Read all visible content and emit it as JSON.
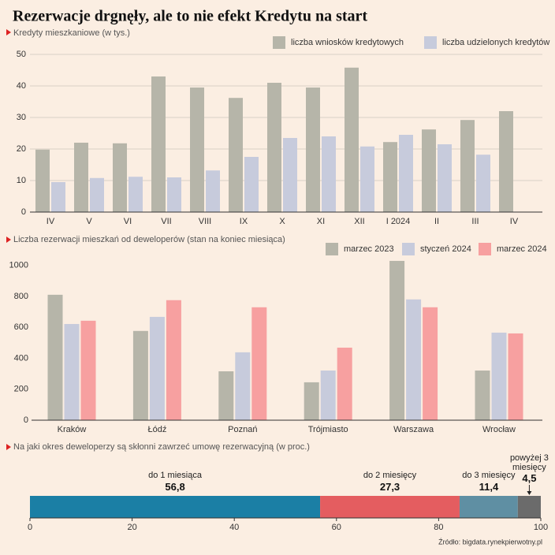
{
  "title": "Rezerwacje drgnęły, ale to nie efekt Kredytu na start",
  "source": "Źródło: bigdata.rynekpierwotny.pl",
  "chart_data": [
    {
      "type": "bar",
      "subtitle": "Kredyty mieszkaniowe (w tys.)",
      "categories": [
        "IV",
        "V",
        "VI",
        "VII",
        "VIII",
        "IX",
        "X",
        "XI",
        "XII",
        "I 2024",
        "II",
        "III",
        "IV"
      ],
      "series": [
        {
          "name": "liczba wniosków kredytowych",
          "color": "#b6b5a9",
          "values": [
            19.8,
            22,
            21.8,
            43,
            39.5,
            36.2,
            41,
            39.5,
            45.8,
            22.2,
            26.2,
            29.2,
            32
          ]
        },
        {
          "name": "liczba udzielonych kredytów",
          "color": "#c7cbdc",
          "values": [
            9.5,
            10.8,
            11.2,
            11,
            13.2,
            17.5,
            23.5,
            24,
            20.8,
            24.5,
            21.5,
            18.2,
            null
          ]
        }
      ],
      "ylim": [
        0,
        50
      ],
      "yticks": [
        0,
        10,
        20,
        30,
        40,
        50
      ],
      "grid": true
    },
    {
      "type": "bar",
      "subtitle": "Liczba rezerwacji mieszkań od deweloperów (stan na koniec miesiąca)",
      "categories": [
        "Kraków",
        "Łódź",
        "Poznań",
        "Trójmiasto",
        "Warszawa",
        "Wrocław"
      ],
      "series": [
        {
          "name": "marzec 2023",
          "color": "#b6b5a9",
          "values": [
            811,
            577,
            316,
            245,
            1030,
            321
          ]
        },
        {
          "name": "styczeń 2024",
          "color": "#c7cbdc",
          "values": [
            622,
            668,
            439,
            321,
            781,
            566
          ]
        },
        {
          "name": "marzec 2024",
          "color": "#f7a0a0",
          "values": [
            643,
            776,
            730,
            469,
            730,
            561
          ]
        }
      ],
      "ylim": [
        0,
        1050
      ],
      "yticks": [
        0,
        200,
        400,
        600,
        800,
        1000
      ],
      "grid": false
    },
    {
      "type": "stacked_bar",
      "subtitle": "Na jaki okres deweloperzy są skłonni zawrzeć umowę rezerwacyjną (w proc.)",
      "series": [
        {
          "name": "do 1 miesiąca",
          "color": "#1b7fa5",
          "values": [
            56.8
          ],
          "value_labels": [
            "56,8"
          ]
        },
        {
          "name": "do 2 miesięcy",
          "color": "#e45d60",
          "values": [
            27.3
          ],
          "value_labels": [
            "27,3"
          ]
        },
        {
          "name": "do 3 miesięcy",
          "color": "#5f8fa3",
          "values": [
            11.4
          ],
          "value_labels": [
            "11,4"
          ]
        },
        {
          "name": "powyżej 3 miesięcy",
          "color": "#6b6b6b",
          "values": [
            4.5
          ],
          "value_labels": [
            "4,5"
          ]
        }
      ],
      "xlim": [
        0,
        100
      ],
      "xticks": [
        0,
        20,
        40,
        60,
        80,
        100
      ]
    }
  ]
}
